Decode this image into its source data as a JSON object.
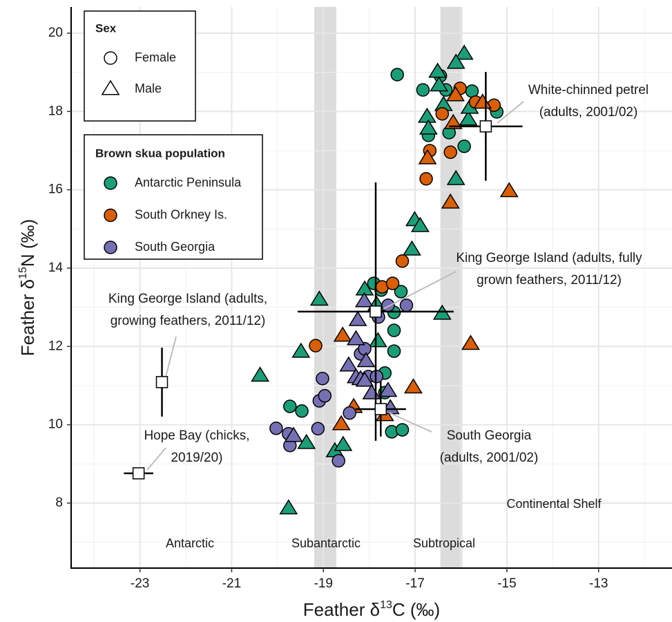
{
  "chart_data": {
    "type": "scatter",
    "xlabel": [
      "Feather δ",
      "13",
      "C (‰)"
    ],
    "ylabel": [
      "Feather δ",
      "15",
      "N (‰)"
    ],
    "xlim": [
      -24.5,
      -11.4
    ],
    "ylim": [
      6.34,
      20.67
    ],
    "xticks": [
      -23,
      -21,
      -19,
      -17,
      -15,
      -13
    ],
    "yticks": [
      8,
      10,
      12,
      14,
      16,
      18,
      20
    ],
    "minor_xticks": [
      -24,
      -22,
      -20,
      -18,
      -16,
      -14,
      -12
    ],
    "minor_yticks": [
      7,
      9,
      11,
      13,
      15,
      17,
      19
    ],
    "grid": true,
    "bands": [
      {
        "range": [
          -19.2,
          -18.72
        ],
        "label": "Subantarctic"
      },
      {
        "range": [
          -16.45,
          -15.97
        ],
        "label": "Subtropical"
      }
    ],
    "region_labels": [
      "Antarctic",
      "Continental Shelf"
    ],
    "shape_legend": {
      "title": "Sex",
      "entries": [
        "Female",
        "Male"
      ]
    },
    "color_legend_title": "Brown skua population",
    "series": [
      {
        "name": "Antarctic Peninsula",
        "color": "#1b9e77",
        "female": {
          "x": [
            -17.39,
            -16.45,
            -16.33,
            -15.76,
            -16.83,
            -15.22,
            -15.93,
            -16.26,
            -16.71,
            -17.9,
            -17.74,
            -17.31,
            -17.46,
            -17.46,
            -17.46,
            -17.66,
            -17.66,
            -17.51,
            -17.28,
            -19.73,
            -19.47
          ],
          "y": [
            18.94,
            18.91,
            18.55,
            18.52,
            18.55,
            17.99,
            17.11,
            17.46,
            17.39,
            13.61,
            13.44,
            13.4,
            12.87,
            12.41,
            11.88,
            11.32,
            10.82,
            9.82,
            9.87,
            10.47,
            10.35
          ]
        },
        "male": {
          "x": [
            -15.93,
            -16.11,
            -16.51,
            -16.48,
            -16.38,
            -16.74,
            -16.71,
            -15.84,
            -15.81,
            -16.11,
            -17.01,
            -16.89,
            -17.07,
            -16.41,
            -19.09,
            -18.1,
            -17.84,
            -17.81,
            -20.38,
            -19.49,
            -19.76,
            -19.37,
            -18.75,
            -18.57
          ],
          "y": [
            19.49,
            19.26,
            19.03,
            18.68,
            18.18,
            17.88,
            17.58,
            17.81,
            18.11,
            16.29,
            15.24,
            15.09,
            14.49,
            12.85,
            13.21,
            13.47,
            13.08,
            12.15,
            11.27,
            11.88,
            7.88,
            9.55,
            9.34,
            9.5
          ]
        }
      },
      {
        "name": "South Orkney Is.",
        "color": "#d95f02",
        "female": {
          "x": [
            -16.02,
            -15.68,
            -15.28,
            -16.41,
            -16.68,
            -16.23,
            -16.76,
            -17.72,
            -17.49,
            -17.28,
            -19.17
          ],
          "y": [
            18.59,
            18.24,
            18.16,
            17.94,
            17.0,
            16.96,
            16.28,
            13.52,
            13.61,
            14.18,
            12.02
          ]
        },
        "male": {
          "x": [
            -16.12,
            -15.53,
            -16.17,
            -16.73,
            -16.23,
            -14.95,
            -15.79,
            -17.04,
            -18.58,
            -18.34,
            -18.61,
            -17.66
          ],
          "y": [
            18.43,
            18.24,
            17.72,
            16.82,
            15.69,
            15.98,
            12.08,
            10.97,
            12.29,
            10.47,
            10.03,
            10.26
          ]
        }
      },
      {
        "name": "South Georgia",
        "color": "#7570b3",
        "female": {
          "x": [
            -20.03,
            -19.76,
            -19.73,
            -19.12,
            -19.09,
            -18.97,
            -19.02,
            -18.67,
            -18.43,
            -18.19,
            -18.1,
            -18.02,
            -17.84,
            -17.8,
            -17.59,
            -17.19
          ],
          "y": [
            9.91,
            9.77,
            9.47,
            9.9,
            10.61,
            10.74,
            11.18,
            9.08,
            10.3,
            11.81,
            11.94,
            11.23,
            11.23,
            12.75,
            13.05,
            13.05
          ]
        },
        "male": {
          "x": [
            -18.11,
            -18.25,
            -18.29,
            -18.45,
            -18.29,
            -18.07,
            -18.19,
            -18.1,
            -17.95,
            -17.59,
            -17.54,
            -19.65
          ],
          "y": [
            13.17,
            12.69,
            12.2,
            11.53,
            11.23,
            11.64,
            11.18,
            11.14,
            10.82,
            10.88,
            10.44,
            9.73
          ]
        }
      }
    ],
    "references": [
      {
        "label": [
          "White-chinned petrel",
          "(adults, 2001/02)"
        ],
        "x": -15.46,
        "y": 17.62,
        "xerr": 0.8,
        "yerr": 1.39
      },
      {
        "label": [
          "King George Island (adults, fully",
          "grown feathers, 2011/12)"
        ],
        "x": -17.86,
        "y": 12.89,
        "xerr": 1.7,
        "yerr": 3.3
      },
      {
        "label": [
          "King George Island (adults,",
          "growing feathers, 2011/12)"
        ],
        "x": -22.52,
        "y": 11.09,
        "xerr": 0.05,
        "yerr": 0.88
      },
      {
        "label": [
          "Hope Bay (chicks,",
          "2019/20)"
        ],
        "x": -23.03,
        "y": 8.76,
        "xerr": 0.32,
        "yerr": 0.05
      },
      {
        "label": [
          "South Georgia",
          "(adults, 2001/02)"
        ],
        "x": -17.75,
        "y": 10.4,
        "xerr": 0.55,
        "yerr": 0.7
      }
    ]
  }
}
